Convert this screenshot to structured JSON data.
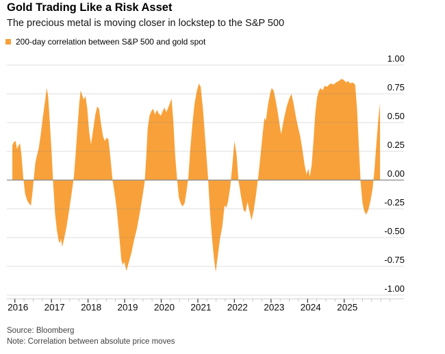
{
  "header": {
    "title": "Gold Trading Like a Risk Asset",
    "subtitle": "The precious metal is moving closer in lockstep to the S&P 500"
  },
  "legend": {
    "label": "200-day correlation between S&P 500 and gold spot",
    "swatch_color": "#F8A13A"
  },
  "footer": {
    "source": "Source: Bloomberg",
    "note": "Note: Correlation between absolute price moves"
  },
  "chart_data": {
    "type": "area",
    "title": "200-day correlation between S&P 500 and gold spot",
    "series_name": "200-day correlation between S&P 500 and gold spot",
    "series_color": "#F8A13A",
    "baseline": 0,
    "grid": true,
    "legend_position": "top-left",
    "x_unit": "decimal_year",
    "xlim": [
      2015.78,
      2026.63
    ],
    "ylim": [
      -1.0,
      1.0
    ],
    "x_tick_years": [
      2016,
      2017,
      2018,
      2019,
      2020,
      2021,
      2022,
      2023,
      2024,
      2025
    ],
    "x_tick_labels": [
      "2016",
      "2017",
      "2018",
      "2019",
      "2020",
      "2021",
      "2022",
      "2023",
      "2024",
      "2025"
    ],
    "y_tick_values": [
      1.0,
      0.75,
      0.5,
      0.25,
      0.0,
      -0.25,
      -0.5,
      -0.75,
      -1.0
    ],
    "y_tick_labels": [
      "1.00",
      "0.75",
      "0.50",
      "0.25",
      "0.00",
      "-0.25",
      "-0.50",
      "-0.75",
      "-1.00"
    ],
    "points": [
      [
        2015.93,
        0.3
      ],
      [
        2015.97,
        0.33
      ],
      [
        2016.02,
        0.34
      ],
      [
        2016.06,
        0.27
      ],
      [
        2016.1,
        0.3
      ],
      [
        2016.14,
        0.32
      ],
      [
        2016.18,
        0.22
      ],
      [
        2016.23,
        0.02
      ],
      [
        2016.28,
        -0.12
      ],
      [
        2016.34,
        -0.18
      ],
      [
        2016.4,
        -0.21
      ],
      [
        2016.44,
        -0.22
      ],
      [
        2016.48,
        -0.11
      ],
      [
        2016.52,
        0.02
      ],
      [
        2016.56,
        0.15
      ],
      [
        2016.6,
        0.21
      ],
      [
        2016.65,
        0.27
      ],
      [
        2016.71,
        0.4
      ],
      [
        2016.77,
        0.56
      ],
      [
        2016.83,
        0.7
      ],
      [
        2016.87,
        0.8
      ],
      [
        2016.91,
        0.73
      ],
      [
        2016.96,
        0.48
      ],
      [
        2017.0,
        0.26
      ],
      [
        2017.05,
        -0.04
      ],
      [
        2017.1,
        -0.3
      ],
      [
        2017.15,
        -0.44
      ],
      [
        2017.2,
        -0.53
      ],
      [
        2017.23,
        -0.55
      ],
      [
        2017.26,
        -0.51
      ],
      [
        2017.29,
        -0.58
      ],
      [
        2017.34,
        -0.52
      ],
      [
        2017.41,
        -0.41
      ],
      [
        2017.48,
        -0.27
      ],
      [
        2017.55,
        -0.12
      ],
      [
        2017.61,
        0.02
      ],
      [
        2017.66,
        0.22
      ],
      [
        2017.71,
        0.45
      ],
      [
        2017.76,
        0.67
      ],
      [
        2017.8,
        0.78
      ],
      [
        2017.84,
        0.74
      ],
      [
        2017.88,
        0.7
      ],
      [
        2017.93,
        0.73
      ],
      [
        2017.98,
        0.62
      ],
      [
        2018.03,
        0.42
      ],
      [
        2018.08,
        0.31
      ],
      [
        2018.14,
        0.44
      ],
      [
        2018.2,
        0.57
      ],
      [
        2018.25,
        0.64
      ],
      [
        2018.3,
        0.62
      ],
      [
        2018.36,
        0.48
      ],
      [
        2018.41,
        0.38
      ],
      [
        2018.46,
        0.34
      ],
      [
        2018.51,
        0.37
      ],
      [
        2018.56,
        0.35
      ],
      [
        2018.61,
        0.2
      ],
      [
        2018.67,
        0.0
      ],
      [
        2018.73,
        -0.12
      ],
      [
        2018.79,
        -0.27
      ],
      [
        2018.84,
        -0.44
      ],
      [
        2018.88,
        -0.58
      ],
      [
        2018.91,
        -0.69
      ],
      [
        2018.95,
        -0.74
      ],
      [
        2018.99,
        -0.71
      ],
      [
        2019.05,
        -0.79
      ],
      [
        2019.11,
        -0.72
      ],
      [
        2019.18,
        -0.64
      ],
      [
        2019.26,
        -0.52
      ],
      [
        2019.33,
        -0.43
      ],
      [
        2019.41,
        -0.29
      ],
      [
        2019.49,
        -0.14
      ],
      [
        2019.55,
        -0.01
      ],
      [
        2019.59,
        0.2
      ],
      [
        2019.63,
        0.45
      ],
      [
        2019.68,
        0.56
      ],
      [
        2019.73,
        0.6
      ],
      [
        2019.78,
        0.62
      ],
      [
        2019.83,
        0.57
      ],
      [
        2019.88,
        0.61
      ],
      [
        2019.93,
        0.58
      ],
      [
        2019.99,
        0.56
      ],
      [
        2020.04,
        0.6
      ],
      [
        2020.09,
        0.63
      ],
      [
        2020.14,
        0.59
      ],
      [
        2020.19,
        0.63
      ],
      [
        2020.24,
        0.67
      ],
      [
        2020.28,
        0.71
      ],
      [
        2020.33,
        0.52
      ],
      [
        2020.38,
        0.22
      ],
      [
        2020.43,
        0.02
      ],
      [
        2020.48,
        -0.15
      ],
      [
        2020.53,
        -0.2
      ],
      [
        2020.58,
        -0.23
      ],
      [
        2020.64,
        -0.2
      ],
      [
        2020.69,
        -0.1
      ],
      [
        2020.74,
        0.02
      ],
      [
        2020.79,
        0.25
      ],
      [
        2020.85,
        0.48
      ],
      [
        2020.91,
        0.66
      ],
      [
        2020.97,
        0.77
      ],
      [
        2021.03,
        0.84
      ],
      [
        2021.08,
        0.81
      ],
      [
        2021.14,
        0.62
      ],
      [
        2021.21,
        0.32
      ],
      [
        2021.28,
        0.02
      ],
      [
        2021.33,
        -0.26
      ],
      [
        2021.38,
        -0.48
      ],
      [
        2021.44,
        -0.68
      ],
      [
        2021.49,
        -0.8
      ],
      [
        2021.55,
        -0.65
      ],
      [
        2021.61,
        -0.5
      ],
      [
        2021.67,
        -0.4
      ],
      [
        2021.73,
        -0.22
      ],
      [
        2021.78,
        -0.24
      ],
      [
        2021.83,
        -0.18
      ],
      [
        2021.89,
        -0.05
      ],
      [
        2021.95,
        0.15
      ],
      [
        2022.0,
        0.34
      ],
      [
        2022.06,
        0.22
      ],
      [
        2022.11,
        0.0
      ],
      [
        2022.18,
        -0.14
      ],
      [
        2022.25,
        -0.26
      ],
      [
        2022.3,
        -0.28
      ],
      [
        2022.36,
        -0.19
      ],
      [
        2022.42,
        -0.28
      ],
      [
        2022.47,
        -0.35
      ],
      [
        2022.53,
        -0.26
      ],
      [
        2022.59,
        -0.13
      ],
      [
        2022.65,
        0.02
      ],
      [
        2022.71,
        0.2
      ],
      [
        2022.77,
        0.4
      ],
      [
        2022.82,
        0.54
      ],
      [
        2022.86,
        0.52
      ],
      [
        2022.92,
        0.66
      ],
      [
        2022.98,
        0.76
      ],
      [
        2023.02,
        0.8
      ],
      [
        2023.07,
        0.78
      ],
      [
        2023.13,
        0.69
      ],
      [
        2023.19,
        0.58
      ],
      [
        2023.24,
        0.47
      ],
      [
        2023.28,
        0.4
      ],
      [
        2023.35,
        0.53
      ],
      [
        2023.43,
        0.64
      ],
      [
        2023.5,
        0.71
      ],
      [
        2023.56,
        0.75
      ],
      [
        2023.62,
        0.66
      ],
      [
        2023.68,
        0.55
      ],
      [
        2023.74,
        0.46
      ],
      [
        2023.8,
        0.38
      ],
      [
        2023.86,
        0.26
      ],
      [
        2023.92,
        0.13
      ],
      [
        2023.97,
        0.05
      ],
      [
        2024.02,
        0.1
      ],
      [
        2024.06,
        0.03
      ],
      [
        2024.11,
        0.13
      ],
      [
        2024.16,
        0.34
      ],
      [
        2024.21,
        0.58
      ],
      [
        2024.26,
        0.72
      ],
      [
        2024.31,
        0.78
      ],
      [
        2024.36,
        0.8
      ],
      [
        2024.41,
        0.78
      ],
      [
        2024.47,
        0.82
      ],
      [
        2024.53,
        0.81
      ],
      [
        2024.59,
        0.83
      ],
      [
        2024.65,
        0.84
      ],
      [
        2024.71,
        0.83
      ],
      [
        2024.78,
        0.85
      ],
      [
        2024.85,
        0.86
      ],
      [
        2024.92,
        0.88
      ],
      [
        2024.99,
        0.87
      ],
      [
        2025.05,
        0.85
      ],
      [
        2025.11,
        0.86
      ],
      [
        2025.17,
        0.84
      ],
      [
        2025.23,
        0.85
      ],
      [
        2025.3,
        0.83
      ],
      [
        2025.35,
        0.62
      ],
      [
        2025.4,
        0.3
      ],
      [
        2025.45,
        -0.02
      ],
      [
        2025.5,
        -0.2
      ],
      [
        2025.55,
        -0.27
      ],
      [
        2025.6,
        -0.3
      ],
      [
        2025.66,
        -0.26
      ],
      [
        2025.72,
        -0.18
      ],
      [
        2025.78,
        -0.07
      ],
      [
        2025.83,
        0.1
      ],
      [
        2025.88,
        0.32
      ],
      [
        2025.93,
        0.52
      ],
      [
        2025.98,
        0.67
      ]
    ]
  }
}
